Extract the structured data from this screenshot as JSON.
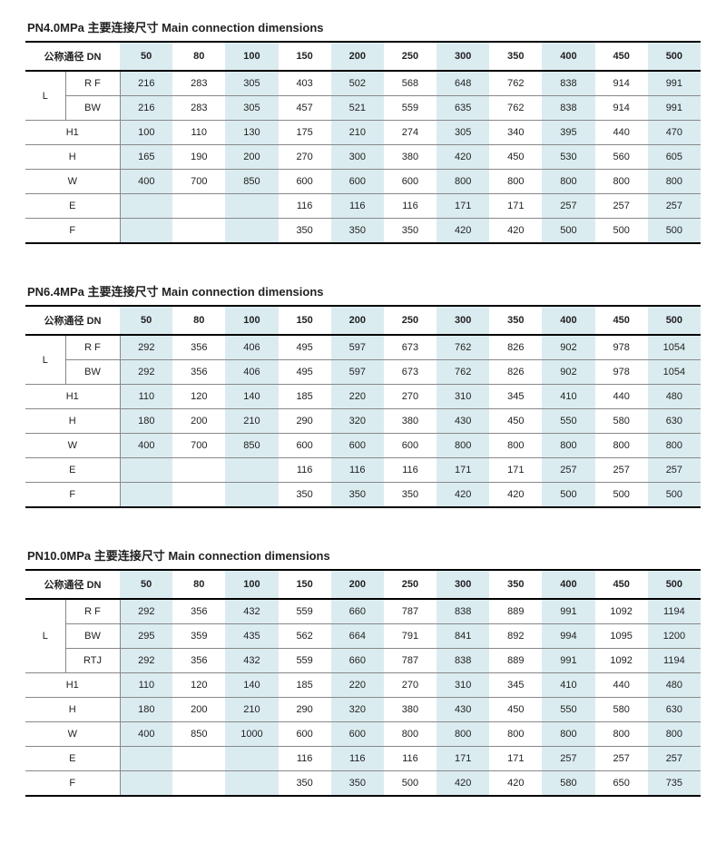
{
  "highlight_color": "#dbecf0",
  "sections": [
    {
      "title": "PN4.0MPa 主要连接尺寸 Main connection dimensions",
      "header_label": "公称通径 DN",
      "dn": [
        "50",
        "80",
        "100",
        "150",
        "200",
        "250",
        "300",
        "350",
        "400",
        "450",
        "500"
      ],
      "highlight_cols": [
        0,
        2,
        4,
        6,
        8,
        10
      ],
      "group": {
        "label": "L",
        "sub": [
          "R F",
          "BW"
        ],
        "rows": [
          [
            "216",
            "283",
            "305",
            "403",
            "502",
            "568",
            "648",
            "762",
            "838",
            "914",
            "991"
          ],
          [
            "216",
            "283",
            "305",
            "457",
            "521",
            "559",
            "635",
            "762",
            "838",
            "914",
            "991"
          ]
        ]
      },
      "rows": [
        {
          "label": "H1",
          "cells": [
            "100",
            "110",
            "130",
            "175",
            "210",
            "274",
            "305",
            "340",
            "395",
            "440",
            "470"
          ]
        },
        {
          "label": "H",
          "cells": [
            "165",
            "190",
            "200",
            "270",
            "300",
            "380",
            "420",
            "450",
            "530",
            "560",
            "605"
          ]
        },
        {
          "label": "W",
          "cells": [
            "400",
            "700",
            "850",
            "600",
            "600",
            "600",
            "800",
            "800",
            "800",
            "800",
            "800"
          ]
        },
        {
          "label": "E",
          "cells": [
            "",
            "",
            "",
            "116",
            "116",
            "116",
            "171",
            "171",
            "257",
            "257",
            "257"
          ]
        },
        {
          "label": "F",
          "cells": [
            "",
            "",
            "",
            "350",
            "350",
            "350",
            "420",
            "420",
            "500",
            "500",
            "500"
          ]
        }
      ]
    },
    {
      "title": "PN6.4MPa 主要连接尺寸 Main connection dimensions",
      "header_label": "公称通径 DN",
      "dn": [
        "50",
        "80",
        "100",
        "150",
        "200",
        "250",
        "300",
        "350",
        "400",
        "450",
        "500"
      ],
      "highlight_cols": [
        0,
        2,
        4,
        6,
        8,
        10
      ],
      "group": {
        "label": "L",
        "sub": [
          "R F",
          "BW"
        ],
        "rows": [
          [
            "292",
            "356",
            "406",
            "495",
            "597",
            "673",
            "762",
            "826",
            "902",
            "978",
            "1054"
          ],
          [
            "292",
            "356",
            "406",
            "495",
            "597",
            "673",
            "762",
            "826",
            "902",
            "978",
            "1054"
          ]
        ]
      },
      "rows": [
        {
          "label": "H1",
          "cells": [
            "110",
            "120",
            "140",
            "185",
            "220",
            "270",
            "310",
            "345",
            "410",
            "440",
            "480"
          ]
        },
        {
          "label": "H",
          "cells": [
            "180",
            "200",
            "210",
            "290",
            "320",
            "380",
            "430",
            "450",
            "550",
            "580",
            "630"
          ]
        },
        {
          "label": "W",
          "cells": [
            "400",
            "700",
            "850",
            "600",
            "600",
            "600",
            "800",
            "800",
            "800",
            "800",
            "800"
          ]
        },
        {
          "label": "E",
          "cells": [
            "",
            "",
            "",
            "116",
            "116",
            "116",
            "171",
            "171",
            "257",
            "257",
            "257"
          ]
        },
        {
          "label": "F",
          "cells": [
            "",
            "",
            "",
            "350",
            "350",
            "350",
            "420",
            "420",
            "500",
            "500",
            "500"
          ]
        }
      ]
    },
    {
      "title": "PN10.0MPa 主要连接尺寸 Main connection dimensions",
      "header_label": "公称通径 DN",
      "dn": [
        "50",
        "80",
        "100",
        "150",
        "200",
        "250",
        "300",
        "350",
        "400",
        "450",
        "500"
      ],
      "highlight_cols": [
        0,
        2,
        4,
        6,
        8,
        10
      ],
      "group": {
        "label": "L",
        "sub": [
          "R F",
          "BW",
          "RTJ"
        ],
        "rows": [
          [
            "292",
            "356",
            "432",
            "559",
            "660",
            "787",
            "838",
            "889",
            "991",
            "1092",
            "1194"
          ],
          [
            "295",
            "359",
            "435",
            "562",
            "664",
            "791",
            "841",
            "892",
            "994",
            "1095",
            "1200"
          ],
          [
            "292",
            "356",
            "432",
            "559",
            "660",
            "787",
            "838",
            "889",
            "991",
            "1092",
            "1194"
          ]
        ]
      },
      "rows": [
        {
          "label": "H1",
          "cells": [
            "110",
            "120",
            "140",
            "185",
            "220",
            "270",
            "310",
            "345",
            "410",
            "440",
            "480"
          ]
        },
        {
          "label": "H",
          "cells": [
            "180",
            "200",
            "210",
            "290",
            "320",
            "380",
            "430",
            "450",
            "550",
            "580",
            "630"
          ]
        },
        {
          "label": "W",
          "cells": [
            "400",
            "850",
            "1000",
            "600",
            "600",
            "800",
            "800",
            "800",
            "800",
            "800",
            "800"
          ]
        },
        {
          "label": "E",
          "cells": [
            "",
            "",
            "",
            "116",
            "116",
            "116",
            "171",
            "171",
            "257",
            "257",
            "257"
          ]
        },
        {
          "label": "F",
          "cells": [
            "",
            "",
            "",
            "350",
            "350",
            "500",
            "420",
            "420",
            "580",
            "650",
            "735"
          ]
        }
      ]
    }
  ]
}
